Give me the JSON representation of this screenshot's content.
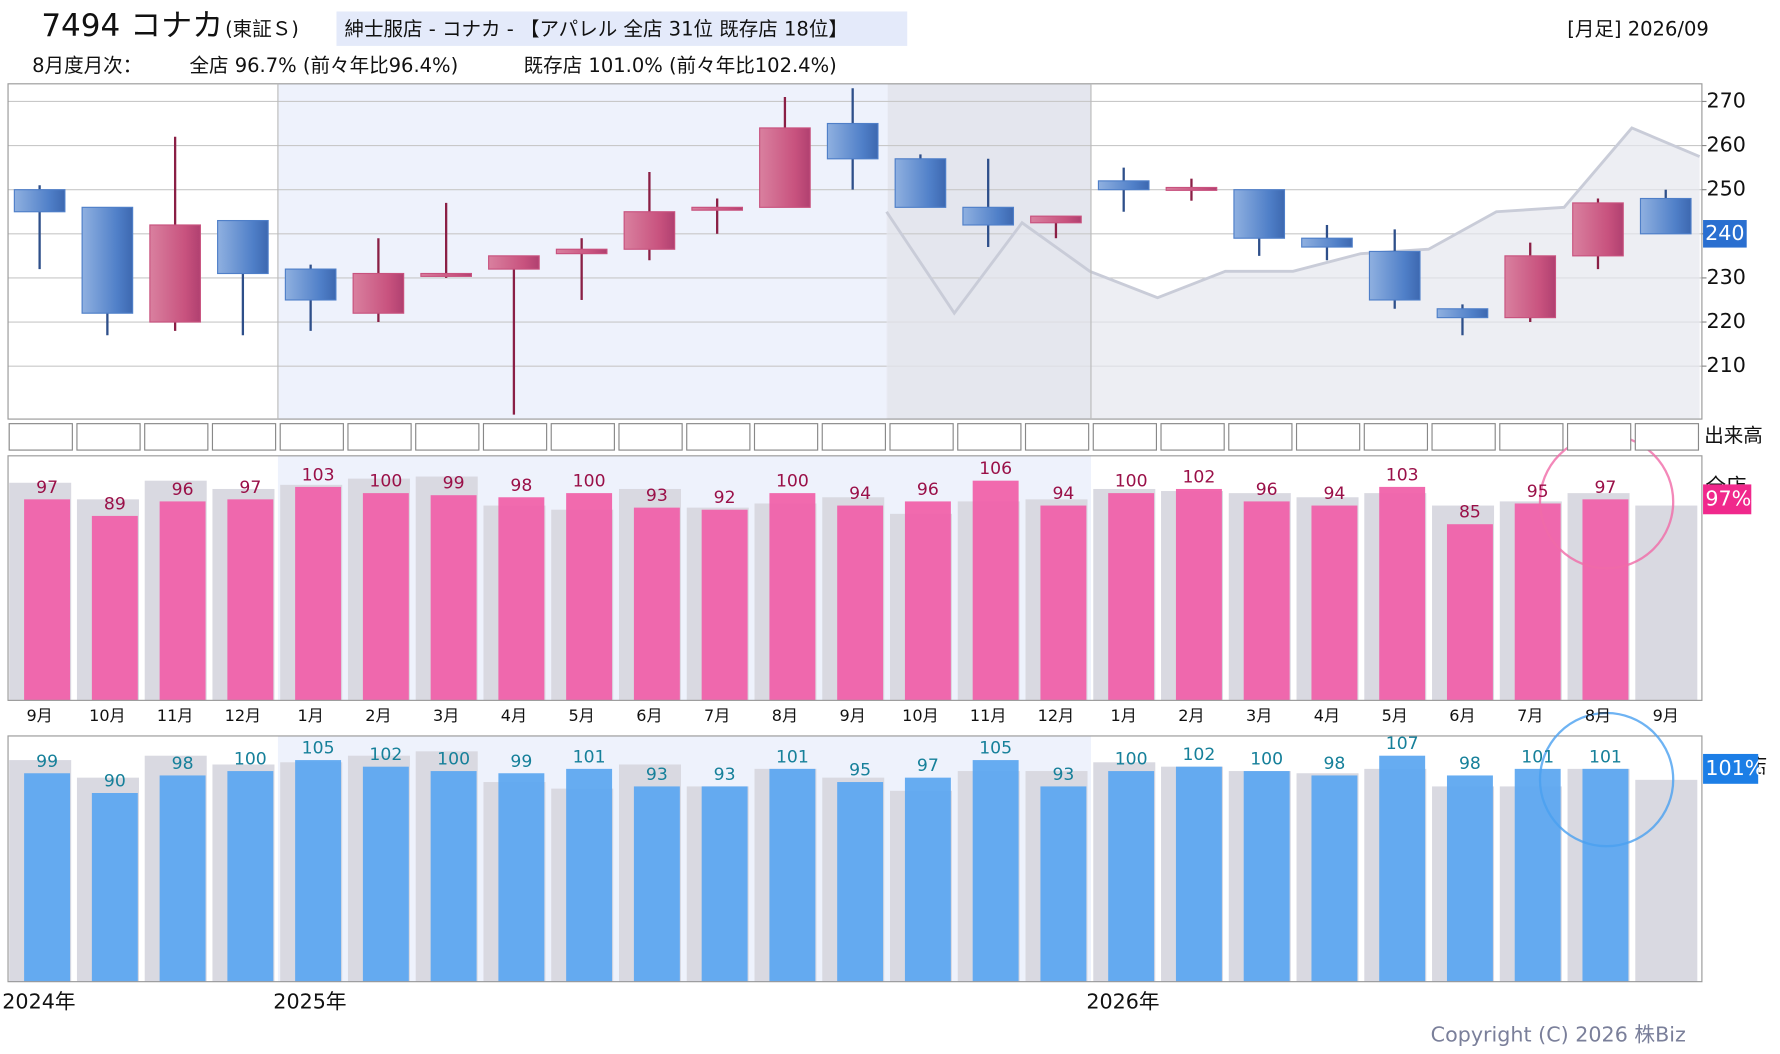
{
  "chart_data": {
    "type": "candlestick",
    "title": "7494 コナカ",
    "exchange": "(東証Ｓ)",
    "subtitle": "紳士服店 - コナカ - 【アパレル 全店 31位 既存店 18位】",
    "period": "[月足] 2026/09",
    "summary": {
      "label": "8月度月次：",
      "all_stores": "全店 96.7% (前々年比96.4%)",
      "existing_stores": "既存店 101.0% (前々年比102.4%)"
    },
    "categories": [
      "9月",
      "10月",
      "11月",
      "12月",
      "1月",
      "2月",
      "3月",
      "4月",
      "5月",
      "6月",
      "7月",
      "8月",
      "9月",
      "10月",
      "11月",
      "12月",
      "1月",
      "2月",
      "3月",
      "4月",
      "5月",
      "6月",
      "7月",
      "8月",
      "9月"
    ],
    "year_labels": [
      "2024年",
      null,
      null,
      null,
      "2025年",
      null,
      null,
      null,
      null,
      null,
      null,
      null,
      null,
      null,
      null,
      null,
      "2026年",
      null,
      null,
      null,
      null,
      null,
      null,
      null,
      null
    ],
    "open": [
      250,
      246,
      220,
      243,
      232,
      222,
      230.5,
      232,
      235.5,
      236.5,
      245.5,
      246,
      265,
      257,
      246,
      242.5,
      252,
      250,
      250,
      239,
      236,
      223,
      221,
      235,
      248
    ],
    "high": [
      251,
      246,
      262,
      243,
      233,
      239,
      247,
      235,
      239,
      254,
      248,
      271,
      273,
      258,
      257,
      244,
      255,
      252.5,
      250,
      242,
      241,
      224,
      238,
      248,
      250
    ],
    "low": [
      232,
      217,
      218,
      217,
      218,
      220,
      230,
      199,
      225,
      234,
      240,
      246,
      250,
      246,
      237,
      239,
      245,
      247.5,
      235,
      234,
      223,
      217,
      220,
      232,
      240
    ],
    "close": [
      245,
      222,
      242,
      231,
      225,
      231,
      231,
      235,
      236.5,
      245,
      246,
      264,
      257,
      246,
      242,
      244,
      250,
      250.5,
      239,
      237,
      225,
      221,
      235,
      247,
      240
    ],
    "up_color": "#c8527e",
    "down_color": "#4f7fc8",
    "ylim": [
      198,
      274
    ],
    "yticks": [
      210,
      220,
      230,
      240,
      250,
      260,
      270
    ],
    "grid": true,
    "last_price": 240,
    "reference_line": {
      "color": "#c9ccd8",
      "values": [
        null,
        null,
        null,
        null,
        null,
        null,
        null,
        null,
        null,
        null,
        null,
        null,
        245,
        222,
        242.5,
        231.5,
        225.5,
        231.5,
        231.5,
        235.5,
        236.5,
        245,
        246,
        264,
        257.5
      ]
    },
    "volume_label": "出来高",
    "panels": [
      {
        "name": "全店",
        "badge": "97%",
        "color": "#f062aa",
        "label_color": "#9a1048",
        "badge_color": "#f0288c",
        "prior_color": "#d9d9e1",
        "ylim": [
          0,
          118
        ],
        "values": [
          97,
          89,
          96,
          97,
          103,
          100,
          99,
          98,
          100,
          93,
          92,
          100,
          94,
          96,
          106,
          94,
          100,
          102,
          96,
          94,
          103,
          85,
          95,
          97,
          null
        ],
        "prior_values": [
          105,
          97,
          106,
          102,
          104,
          107,
          108,
          94,
          92,
          102,
          93,
          95,
          98,
          90,
          96,
          97,
          102,
          101,
          100,
          98,
          100,
          94,
          96,
          100,
          94
        ]
      },
      {
        "name": "既存店",
        "badge": "101%",
        "color": "#5ea8f0",
        "label_color": "#16809a",
        "badge_color": "#1c7ee6",
        "prior_color": "#d9d9e1",
        "ylim": [
          4,
          116
        ],
        "values": [
          99,
          90,
          98,
          100,
          105,
          102,
          100,
          99,
          101,
          93,
          93,
          101,
          95,
          97,
          105,
          93,
          100,
          102,
          100,
          98,
          107,
          98,
          101,
          101,
          null
        ],
        "prior_values": [
          105,
          97,
          107,
          103,
          104,
          107,
          109,
          95,
          92,
          103,
          93,
          101,
          97,
          91,
          100,
          100,
          104,
          102,
          100,
          99,
          101,
          93,
          93,
          101,
          96
        ]
      }
    ],
    "copyright": "Copyright (C) 2026 株Biz"
  }
}
